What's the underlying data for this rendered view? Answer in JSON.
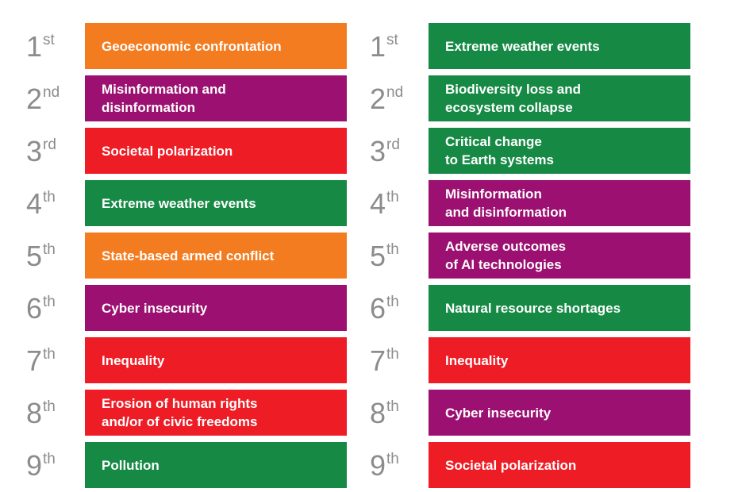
{
  "colors": {
    "geopolitical": "#f47c20",
    "societal": "#ee1c25",
    "technological": "#9b1070",
    "environmental": "#168a45",
    "rank_text": "#8c8c8c"
  },
  "left": {
    "items": [
      {
        "rank": "1",
        "suffix": "st",
        "label": "Geoeconomic confrontation",
        "category": "geopolitical"
      },
      {
        "rank": "2",
        "suffix": "nd",
        "label": "Misinformation and\ndisinformation",
        "category": "technological"
      },
      {
        "rank": "3",
        "suffix": "rd",
        "label": "Societal polarization",
        "category": "societal"
      },
      {
        "rank": "4",
        "suffix": "th",
        "label": "Extreme weather events",
        "category": "environmental"
      },
      {
        "rank": "5",
        "suffix": "th",
        "label": "State-based armed conflict",
        "category": "geopolitical"
      },
      {
        "rank": "6",
        "suffix": "th",
        "label": "Cyber insecurity",
        "category": "technological"
      },
      {
        "rank": "7",
        "suffix": "th",
        "label": "Inequality",
        "category": "societal"
      },
      {
        "rank": "8",
        "suffix": "th",
        "label": "Erosion of human rights\nand/or of civic freedoms",
        "category": "societal"
      },
      {
        "rank": "9",
        "suffix": "th",
        "label": "Pollution",
        "category": "environmental"
      }
    ]
  },
  "right": {
    "items": [
      {
        "rank": "1",
        "suffix": "st",
        "label": "Extreme weather events",
        "category": "environmental"
      },
      {
        "rank": "2",
        "suffix": "nd",
        "label": "Biodiversity loss and\necosystem collapse",
        "category": "environmental"
      },
      {
        "rank": "3",
        "suffix": "rd",
        "label": "Critical change\nto Earth systems",
        "category": "environmental"
      },
      {
        "rank": "4",
        "suffix": "th",
        "label": "Misinformation\nand disinformation",
        "category": "technological"
      },
      {
        "rank": "5",
        "suffix": "th",
        "label": "Adverse outcomes\nof AI technologies",
        "category": "technological"
      },
      {
        "rank": "6",
        "suffix": "th",
        "label": "Natural resource shortages",
        "category": "environmental"
      },
      {
        "rank": "7",
        "suffix": "th",
        "label": "Inequality",
        "category": "societal"
      },
      {
        "rank": "8",
        "suffix": "th",
        "label": "Cyber insecurity",
        "category": "technological"
      },
      {
        "rank": "9",
        "suffix": "th",
        "label": "Societal polarization",
        "category": "societal"
      }
    ]
  }
}
